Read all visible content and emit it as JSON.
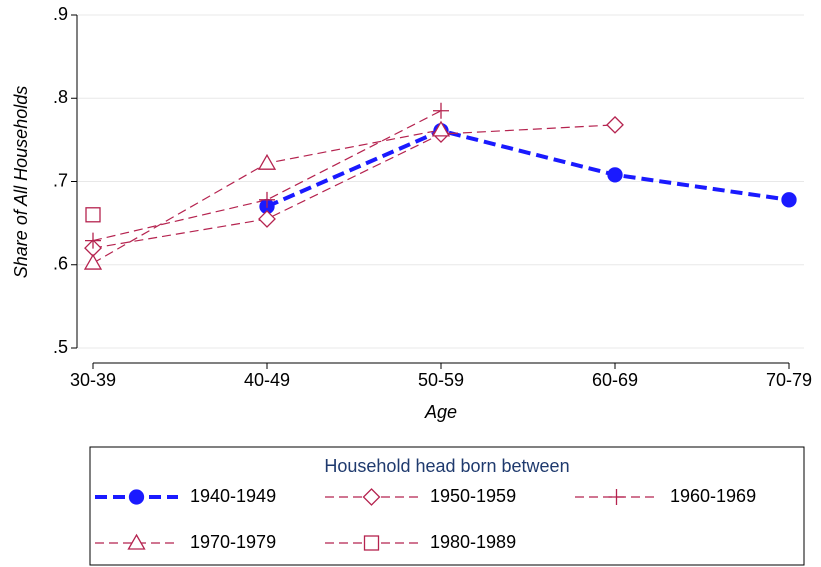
{
  "chart_data": {
    "type": "line",
    "y_label": "Share of All Households",
    "x_label": "Age",
    "legend_title": "Household head born between",
    "categories": [
      "30-39",
      "40-49",
      "50-59",
      "60-69",
      "70-79"
    ],
    "ylim": [
      0.5,
      0.9
    ],
    "yticks": [
      {
        "value": 0.5,
        "label": ".5"
      },
      {
        "value": 0.6,
        "label": ".6"
      },
      {
        "value": 0.7,
        "label": ".7"
      },
      {
        "value": 0.8,
        "label": ".8"
      },
      {
        "value": 0.9,
        "label": ".9"
      }
    ],
    "grid": true,
    "series": [
      {
        "name": "1940-1949",
        "color": "#1a1aff",
        "marker": "circle",
        "line_width": 4,
        "values": [
          null,
          0.67,
          0.761,
          0.708,
          0.678
        ]
      },
      {
        "name": "1950-1959",
        "color": "#b5234f",
        "marker": "diamond",
        "line_width": 1.2,
        "values": [
          0.62,
          0.655,
          0.757,
          0.768,
          null
        ]
      },
      {
        "name": "1960-1969",
        "color": "#b5234f",
        "marker": "plus",
        "line_width": 1.2,
        "values": [
          0.629,
          0.678,
          0.785,
          null,
          null
        ]
      },
      {
        "name": "1970-1979",
        "color": "#b5234f",
        "marker": "triangle",
        "line_width": 1.2,
        "values": [
          0.602,
          0.722,
          0.762,
          null,
          null
        ]
      },
      {
        "name": "1980-1989",
        "color": "#b5234f",
        "marker": "square",
        "line_width": 1.2,
        "values": [
          0.66,
          null,
          null,
          null,
          null
        ]
      }
    ]
  }
}
